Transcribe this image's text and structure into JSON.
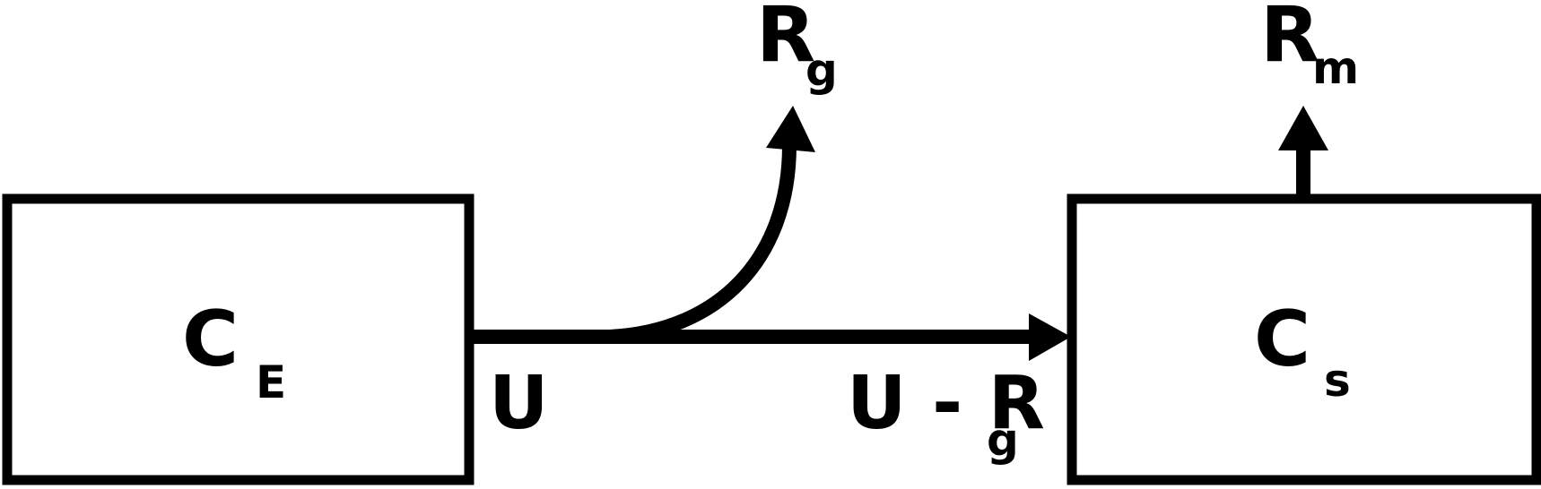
{
  "diagram": {
    "stroke_color": "#000000",
    "background": "#ffffff",
    "boxes": {
      "left": {
        "main": "C",
        "sub": "E"
      },
      "right": {
        "main": "C",
        "sub": "s"
      }
    },
    "flows": {
      "inflow": {
        "main": "U"
      },
      "transfer": {
        "main": "U - R",
        "sub": "g"
      },
      "rg_out": {
        "main": "R",
        "sub": "g"
      },
      "rm_out": {
        "main": "R",
        "sub": "m"
      }
    }
  }
}
